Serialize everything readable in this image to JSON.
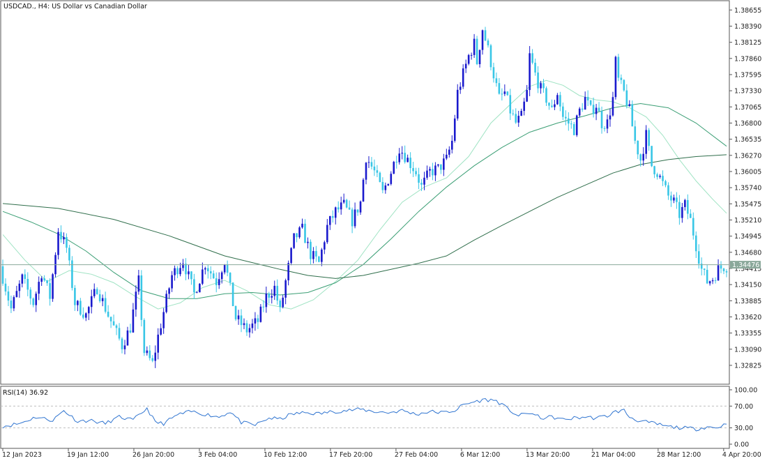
{
  "window": {
    "title": "USDCAD., H4:  US Dollar vs Canadian Dollar",
    "current_price_label": "1.34476"
  },
  "rsi_panel": {
    "label": "RSI(14) 36.92"
  },
  "colors": {
    "bull_candle": "#1a1acd",
    "bear_candle": "#38c6e6",
    "ma_fast": "#9fe3c3",
    "ma_mid": "#3a9e74",
    "ma_slow": "#2f6e4b",
    "rsi_line": "#2f74d0",
    "price_line": "#8aa89a",
    "background": "#ffffff",
    "border": "#555555"
  },
  "chart_data": [
    {
      "type": "candlestick",
      "title": "USDCAD., H4:  US Dollar vs Canadian Dollar",
      "x_tick_labels": [
        "12 Jan 2023",
        "19 Jan 12:00",
        "26 Jan 20:00",
        "3 Feb 04:00",
        "10 Feb 12:00",
        "17 Feb 20:00",
        "27 Feb 04:00",
        "6 Mar 12:00",
        "13 Mar 20:00",
        "21 Mar 04:00",
        "28 Mar 12:00",
        "4 Apr 20:00"
      ],
      "y_tick_labels": [
        "1.38655",
        "1.38390",
        "1.38125",
        "1.37860",
        "1.37595",
        "1.37330",
        "1.37065",
        "1.36800",
        "1.36535",
        "1.36270",
        "1.36005",
        "1.35740",
        "1.35475",
        "1.35210",
        "1.34945",
        "1.34680",
        "1.34415",
        "1.34150",
        "1.33885",
        "1.33620",
        "1.33355",
        "1.33090",
        "1.32825"
      ],
      "ylim": [
        1.3255,
        1.3875
      ],
      "current_price": 1.34476,
      "price_path": [
        [
          0,
          1.3445
        ],
        [
          4,
          1.3375
        ],
        [
          8,
          1.3425
        ],
        [
          12,
          1.3385
        ],
        [
          15,
          1.3435
        ],
        [
          18,
          1.3395
        ],
        [
          21,
          1.3505
        ],
        [
          24,
          1.3475
        ],
        [
          27,
          1.3385
        ],
        [
          31,
          1.3365
        ],
        [
          35,
          1.341
        ],
        [
          39,
          1.3365
        ],
        [
          44,
          1.3315
        ],
        [
          47,
          1.3345
        ],
        [
          50,
          1.342
        ],
        [
          52,
          1.3305
        ],
        [
          55,
          1.3285
        ],
        [
          57,
          1.333
        ],
        [
          62,
          1.343
        ],
        [
          66,
          1.3455
        ],
        [
          70,
          1.34
        ],
        [
          74,
          1.345
        ],
        [
          78,
          1.342
        ],
        [
          81,
          1.3455
        ],
        [
          85,
          1.336
        ],
        [
          89,
          1.334
        ],
        [
          93,
          1.3355
        ],
        [
          96,
          1.3395
        ],
        [
          99,
          1.341
        ],
        [
          101,
          1.337
        ],
        [
          103,
          1.342
        ],
        [
          106,
          1.349
        ],
        [
          109,
          1.3505
        ],
        [
          112,
          1.3465
        ],
        [
          115,
          1.345
        ],
        [
          118,
          1.351
        ],
        [
          121,
          1.3535
        ],
        [
          124,
          1.3545
        ],
        [
          127,
          1.352
        ],
        [
          130,
          1.355
        ],
        [
          132,
          1.3625
        ],
        [
          135,
          1.36
        ],
        [
          138,
          1.3565
        ],
        [
          141,
          1.36
        ],
        [
          144,
          1.364
        ],
        [
          147,
          1.362
        ],
        [
          150,
          1.36
        ],
        [
          152,
          1.3575
        ],
        [
          155,
          1.36
        ],
        [
          158,
          1.3605
        ],
        [
          161,
          1.362
        ],
        [
          163,
          1.365
        ],
        [
          165,
          1.373
        ],
        [
          167,
          1.376
        ],
        [
          169,
          1.379
        ],
        [
          171,
          1.381
        ],
        [
          172,
          1.378
        ],
        [
          174,
          1.3835
        ],
        [
          176,
          1.38
        ],
        [
          178,
          1.376
        ],
        [
          180,
          1.372
        ],
        [
          182,
          1.373
        ],
        [
          184,
          1.37
        ],
        [
          186,
          1.368
        ],
        [
          188,
          1.369
        ],
        [
          190,
          1.373
        ],
        [
          191,
          1.379
        ],
        [
          193,
          1.376
        ],
        [
          195,
          1.3735
        ],
        [
          197,
          1.372
        ],
        [
          199,
          1.37
        ],
        [
          201,
          1.373
        ],
        [
          203,
          1.369
        ],
        [
          205,
          1.368
        ],
        [
          207,
          1.367
        ],
        [
          209,
          1.37
        ],
        [
          211,
          1.372
        ],
        [
          213,
          1.37
        ],
        [
          215,
          1.371
        ],
        [
          217,
          1.368
        ],
        [
          219,
          1.368
        ],
        [
          221,
          1.372
        ],
        [
          222,
          1.378
        ],
        [
          223,
          1.375
        ],
        [
          225,
          1.373
        ],
        [
          227,
          1.37
        ],
        [
          229,
          1.365
        ],
        [
          231,
          1.362
        ],
        [
          233,
          1.366
        ],
        [
          235,
          1.361
        ],
        [
          237,
          1.36
        ],
        [
          239,
          1.358
        ],
        [
          241,
          1.356
        ],
        [
          243,
          1.355
        ],
        [
          245,
          1.353
        ],
        [
          247,
          1.3545
        ],
        [
          249,
          1.352
        ],
        [
          251,
          1.348
        ],
        [
          253,
          1.344
        ],
        [
          255,
          1.342
        ],
        [
          257,
          1.3425
        ],
        [
          259,
          1.344
        ],
        [
          261,
          1.3445
        ]
      ],
      "moving_averages": [
        {
          "role": "fast",
          "values": [
            [
              0,
              1.3497
            ],
            [
              8,
              1.3455
            ],
            [
              16,
              1.342
            ],
            [
              24,
              1.3438
            ],
            [
              32,
              1.3432
            ],
            [
              40,
              1.3418
            ],
            [
              48,
              1.3395
            ],
            [
              56,
              1.3375
            ],
            [
              64,
              1.3385
            ],
            [
              72,
              1.341
            ],
            [
              80,
              1.3422
            ],
            [
              88,
              1.3405
            ],
            [
              96,
              1.3382
            ],
            [
              104,
              1.3375
            ],
            [
              112,
              1.339
            ],
            [
              120,
              1.342
            ],
            [
              128,
              1.3455
            ],
            [
              136,
              1.3505
            ],
            [
              144,
              1.355
            ],
            [
              152,
              1.3575
            ],
            [
              160,
              1.359
            ],
            [
              168,
              1.3625
            ],
            [
              176,
              1.368
            ],
            [
              184,
              1.3715
            ],
            [
              190,
              1.374
            ],
            [
              196,
              1.375
            ],
            [
              202,
              1.3742
            ],
            [
              208,
              1.3725
            ],
            [
              214,
              1.3718
            ],
            [
              220,
              1.3715
            ],
            [
              226,
              1.3705
            ],
            [
              232,
              1.369
            ],
            [
              238,
              1.366
            ],
            [
              244,
              1.362
            ],
            [
              250,
              1.3585
            ],
            [
              256,
              1.3555
            ],
            [
              261,
              1.3532
            ]
          ]
        },
        {
          "role": "mid",
          "values": [
            [
              0,
              1.3535
            ],
            [
              10,
              1.3518
            ],
            [
              20,
              1.3498
            ],
            [
              30,
              1.347
            ],
            [
              40,
              1.3435
            ],
            [
              50,
              1.3405
            ],
            [
              60,
              1.3392
            ],
            [
              70,
              1.3392
            ],
            [
              80,
              1.34
            ],
            [
              90,
              1.3402
            ],
            [
              100,
              1.3398
            ],
            [
              110,
              1.3402
            ],
            [
              120,
              1.3418
            ],
            [
              130,
              1.3448
            ],
            [
              140,
              1.349
            ],
            [
              150,
              1.3535
            ],
            [
              160,
              1.3575
            ],
            [
              170,
              1.361
            ],
            [
              180,
              1.364
            ],
            [
              190,
              1.3665
            ],
            [
              200,
              1.368
            ],
            [
              210,
              1.3692
            ],
            [
              220,
              1.3705
            ],
            [
              230,
              1.3712
            ],
            [
              240,
              1.3705
            ],
            [
              250,
              1.368
            ],
            [
              261,
              1.3642
            ]
          ]
        },
        {
          "role": "slow",
          "values": [
            [
              0,
              1.3548
            ],
            [
              20,
              1.354
            ],
            [
              40,
              1.3522
            ],
            [
              60,
              1.3495
            ],
            [
              80,
              1.3462
            ],
            [
              100,
              1.344
            ],
            [
              110,
              1.343
            ],
            [
              120,
              1.3425
            ],
            [
              130,
              1.343
            ],
            [
              140,
              1.344
            ],
            [
              150,
              1.345
            ],
            [
              160,
              1.3462
            ],
            [
              170,
              1.3488
            ],
            [
              180,
              1.3512
            ],
            [
              190,
              1.3535
            ],
            [
              200,
              1.3558
            ],
            [
              210,
              1.3578
            ],
            [
              220,
              1.3598
            ],
            [
              230,
              1.3612
            ],
            [
              240,
              1.362
            ],
            [
              250,
              1.3625
            ],
            [
              261,
              1.3628
            ]
          ]
        }
      ]
    },
    {
      "type": "line",
      "title": "RSI(14) 36.92",
      "ylim": [
        0,
        100
      ],
      "y_tick_labels": [
        "100.00",
        "70.00",
        "30.00",
        "0.00"
      ],
      "levels": [
        70,
        30
      ],
      "x_range": [
        0,
        261
      ],
      "values": [
        [
          0,
          33
        ],
        [
          6,
          38
        ],
        [
          12,
          50
        ],
        [
          18,
          44
        ],
        [
          22,
          62
        ],
        [
          27,
          42
        ],
        [
          31,
          44
        ],
        [
          37,
          38
        ],
        [
          42,
          50
        ],
        [
          47,
          44
        ],
        [
          52,
          66
        ],
        [
          55,
          40
        ],
        [
          58,
          38
        ],
        [
          63,
          54
        ],
        [
          68,
          60
        ],
        [
          73,
          55
        ],
        [
          78,
          50
        ],
        [
          82,
          60
        ],
        [
          86,
          40
        ],
        [
          91,
          35
        ],
        [
          96,
          48
        ],
        [
          100,
          46
        ],
        [
          104,
          55
        ],
        [
          109,
          58
        ],
        [
          114,
          56
        ],
        [
          119,
          60
        ],
        [
          124,
          62
        ],
        [
          129,
          64
        ],
        [
          134,
          60
        ],
        [
          139,
          58
        ],
        [
          144,
          62
        ],
        [
          149,
          55
        ],
        [
          154,
          60
        ],
        [
          159,
          58
        ],
        [
          163,
          62
        ],
        [
          166,
          72
        ],
        [
          170,
          78
        ],
        [
          174,
          82
        ],
        [
          178,
          80
        ],
        [
          182,
          65
        ],
        [
          186,
          52
        ],
        [
          190,
          58
        ],
        [
          194,
          48
        ],
        [
          198,
          50
        ],
        [
          202,
          45
        ],
        [
          206,
          48
        ],
        [
          210,
          50
        ],
        [
          214,
          48
        ],
        [
          218,
          52
        ],
        [
          221,
          60
        ],
        [
          224,
          62
        ],
        [
          226,
          50
        ],
        [
          230,
          42
        ],
        [
          235,
          38
        ],
        [
          240,
          32
        ],
        [
          245,
          30
        ],
        [
          250,
          28
        ],
        [
          254,
          32
        ],
        [
          257,
          30
        ],
        [
          261,
          36.92
        ]
      ]
    }
  ]
}
